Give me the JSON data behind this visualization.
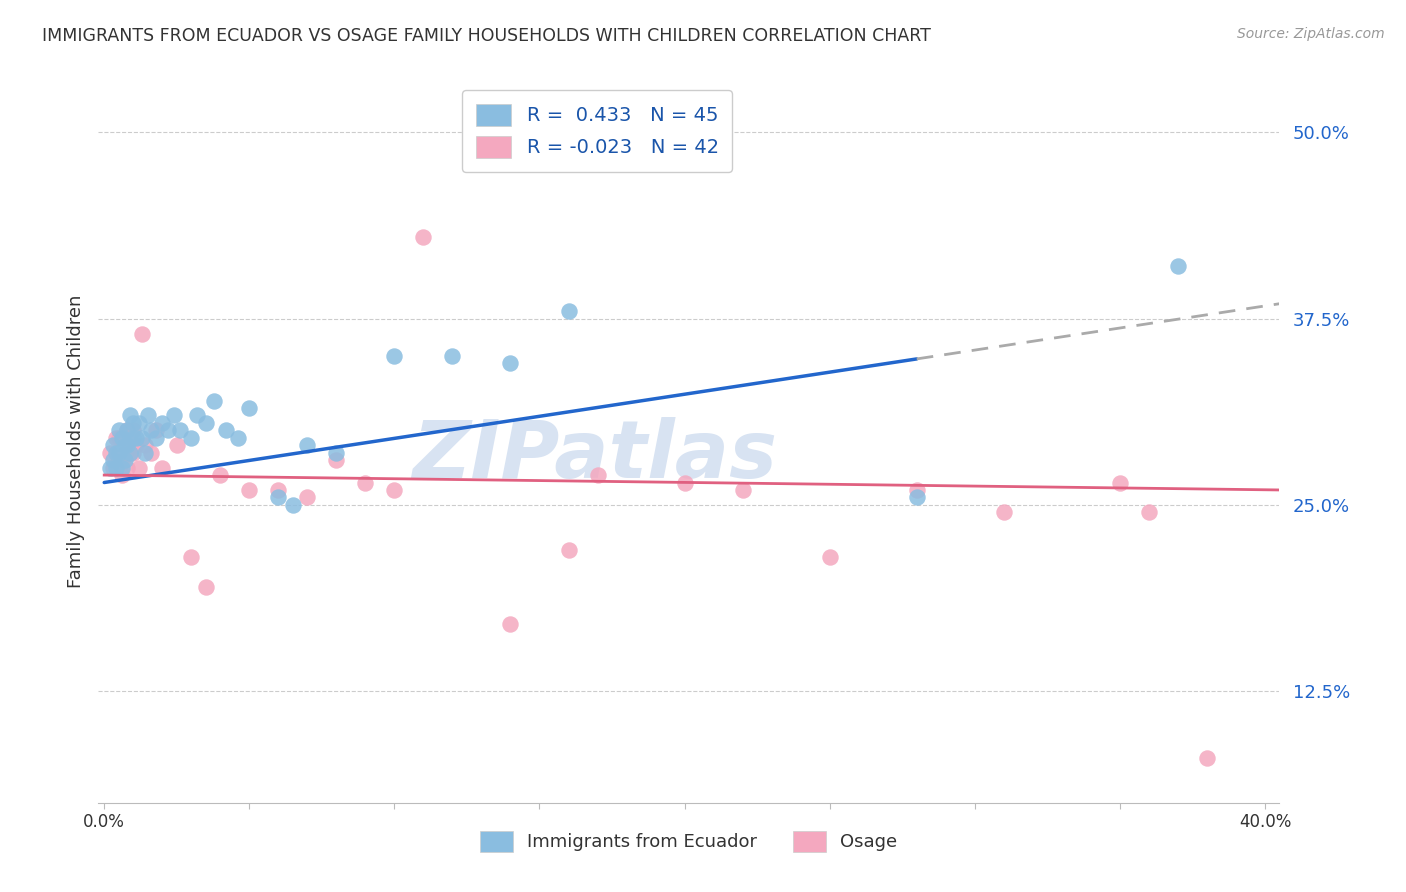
{
  "title": "IMMIGRANTS FROM ECUADOR VS OSAGE FAMILY HOUSEHOLDS WITH CHILDREN CORRELATION CHART",
  "source": "Source: ZipAtlas.com",
  "ylabel": "Family Households with Children",
  "ytick_labels": [
    "12.5%",
    "25.0%",
    "37.5%",
    "50.0%"
  ],
  "ytick_values": [
    0.125,
    0.25,
    0.375,
    0.5
  ],
  "xtick_values": [
    0.0,
    0.05,
    0.1,
    0.15,
    0.2,
    0.25,
    0.3,
    0.35,
    0.4
  ],
  "xlim": [
    -0.002,
    0.405
  ],
  "ylim": [
    0.05,
    0.535
  ],
  "legend_label1": "Immigrants from Ecuador",
  "legend_label2": "Osage",
  "R1": 0.433,
  "N1": 45,
  "R2": -0.023,
  "N2": 42,
  "color_blue": "#8abde0",
  "color_pink": "#f4a8bf",
  "line_blue": "#2266cc",
  "line_pink": "#e06080",
  "line_dash": "#aaaaaa",
  "watermark": "ZIPatlas",
  "blue_line_solid_end": 0.28,
  "blue_line_y_start": 0.265,
  "blue_line_y_end": 0.385,
  "pink_line_y_start": 0.27,
  "pink_line_y_end": 0.26,
  "blue_points_x": [
    0.002,
    0.003,
    0.003,
    0.004,
    0.004,
    0.005,
    0.005,
    0.006,
    0.006,
    0.007,
    0.007,
    0.008,
    0.008,
    0.009,
    0.009,
    0.01,
    0.01,
    0.011,
    0.012,
    0.013,
    0.014,
    0.015,
    0.016,
    0.018,
    0.02,
    0.022,
    0.024,
    0.026,
    0.03,
    0.032,
    0.035,
    0.038,
    0.042,
    0.046,
    0.05,
    0.06,
    0.065,
    0.07,
    0.08,
    0.1,
    0.12,
    0.14,
    0.16,
    0.28,
    0.37
  ],
  "blue_points_y": [
    0.275,
    0.29,
    0.28,
    0.285,
    0.275,
    0.3,
    0.285,
    0.295,
    0.275,
    0.29,
    0.28,
    0.3,
    0.29,
    0.31,
    0.285,
    0.295,
    0.305,
    0.295,
    0.305,
    0.295,
    0.285,
    0.31,
    0.3,
    0.295,
    0.305,
    0.3,
    0.31,
    0.3,
    0.295,
    0.31,
    0.305,
    0.32,
    0.3,
    0.295,
    0.315,
    0.255,
    0.25,
    0.29,
    0.285,
    0.35,
    0.35,
    0.345,
    0.38,
    0.255,
    0.41
  ],
  "pink_points_x": [
    0.002,
    0.003,
    0.004,
    0.005,
    0.005,
    0.006,
    0.007,
    0.007,
    0.008,
    0.008,
    0.009,
    0.01,
    0.01,
    0.011,
    0.012,
    0.013,
    0.014,
    0.016,
    0.018,
    0.02,
    0.025,
    0.03,
    0.035,
    0.04,
    0.05,
    0.06,
    0.07,
    0.08,
    0.09,
    0.1,
    0.11,
    0.14,
    0.16,
    0.17,
    0.2,
    0.22,
    0.25,
    0.28,
    0.31,
    0.35,
    0.36,
    0.38
  ],
  "pink_points_y": [
    0.285,
    0.275,
    0.295,
    0.28,
    0.295,
    0.27,
    0.285,
    0.295,
    0.275,
    0.3,
    0.285,
    0.285,
    0.3,
    0.29,
    0.275,
    0.365,
    0.29,
    0.285,
    0.3,
    0.275,
    0.29,
    0.215,
    0.195,
    0.27,
    0.26,
    0.26,
    0.255,
    0.28,
    0.265,
    0.26,
    0.43,
    0.17,
    0.22,
    0.27,
    0.265,
    0.26,
    0.215,
    0.26,
    0.245,
    0.265,
    0.245,
    0.08
  ]
}
